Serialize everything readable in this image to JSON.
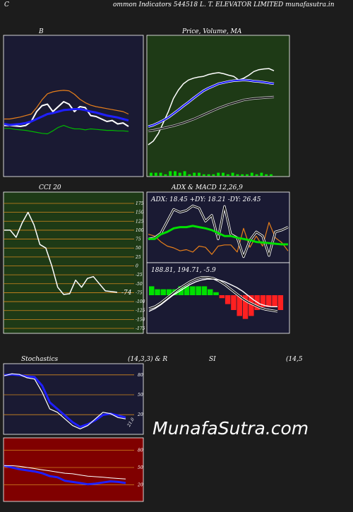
{
  "header": {
    "left": "C",
    "title": "ommon  Indicators 544518  L. T. ELEVATOR LIMITED munafasutra.in"
  },
  "watermark": "MunafaSutra.com",
  "colors": {
    "background": "#1c1c1c",
    "navy_panel": "#1a1a33",
    "green_panel": "#1e3a16",
    "red_panel": "#800000",
    "grid_orange": "#d2871e",
    "white": "#ffffff",
    "blue": "#1f1fff",
    "green": "#00b800",
    "orange": "#e67e1a",
    "bright_green": "#00e000",
    "red": "#ff2020"
  },
  "chart_data": [
    {
      "id": "bollinger",
      "type": "line",
      "title": "B",
      "series": [
        {
          "values": [
            168,
            168,
            169,
            170,
            168,
            160,
            140,
            128,
            125,
            140,
            130,
            120,
            125,
            140,
            130,
            132,
            148,
            150,
            155,
            160,
            158,
            165,
            163,
            170
          ]
        },
        {
          "values": [
            165,
            167,
            166,
            165,
            163,
            160,
            155,
            150,
            145,
            143,
            140,
            137,
            136,
            135,
            135,
            137,
            140,
            142,
            145,
            148,
            150,
            152,
            155,
            158
          ]
        },
        {
          "values": [
            155,
            155,
            153,
            151,
            148,
            145,
            132,
            116,
            104,
            100,
            98,
            97,
            98,
            105,
            115,
            122,
            127,
            130,
            132,
            134,
            136,
            138,
            140,
            145
          ]
        },
        {
          "values": [
            174,
            174,
            176,
            177,
            178,
            180,
            182,
            184,
            185,
            179,
            172,
            168,
            172,
            175,
            175,
            177,
            175,
            176,
            177,
            178,
            178,
            179,
            179,
            180
          ]
        }
      ]
    },
    {
      "id": "price_ma",
      "type": "line",
      "title": "Price,  Volume,  MA",
      "series": [
        {
          "values": [
            210,
            200,
            180,
            150,
            120,
            85,
            62,
            45,
            35,
            30,
            27,
            25,
            20,
            17,
            15,
            18,
            22,
            25,
            35,
            30,
            22,
            12,
            7,
            5,
            4,
            10
          ]
        },
        {
          "values": [
            180,
            176,
            170,
            163,
            155,
            145,
            135,
            124,
            114,
            103,
            93,
            83,
            76,
            70,
            64,
            61,
            58,
            56,
            55,
            54,
            55,
            57,
            58,
            60,
            62,
            64
          ]
        },
        {
          "values": [
            192,
            190,
            187,
            184,
            181,
            178,
            174,
            170,
            165,
            160,
            154,
            148,
            142,
            136,
            130,
            125,
            120,
            116,
            112,
            108,
            106,
            104,
            103,
            102,
            101,
            100
          ]
        }
      ],
      "volume": [
        2,
        2,
        2,
        1,
        3,
        3,
        2,
        3,
        1,
        2,
        2,
        1,
        1,
        1,
        2,
        2,
        1,
        2,
        1,
        1,
        1,
        2,
        1,
        2,
        1,
        1
      ]
    },
    {
      "id": "cci",
      "type": "line",
      "title": "CCI 20",
      "yticks": [
        175,
        150,
        125,
        100,
        75,
        50,
        25,
        0,
        -25,
        -50,
        -75,
        -100,
        -125,
        -150,
        -175
      ],
      "ylim": [
        -175,
        175
      ],
      "last_label": "-74",
      "series": [
        {
          "values": [
            100,
            100,
            80,
            120,
            150,
            115,
            60,
            50,
            0,
            -60,
            -80,
            -78,
            -40,
            -60,
            -35,
            -30,
            -50,
            -70,
            -72,
            -74
          ]
        }
      ]
    },
    {
      "id": "adx",
      "type": "line",
      "title": "ADX  & MACD 12,26,9",
      "readout": "ADX: 18.45 +DY: 18.21 -DY: 26.45",
      "series": [
        {
          "values": [
            40,
            40,
            48,
            52,
            58,
            60,
            60,
            62,
            60,
            58,
            55,
            50,
            45,
            45,
            42,
            40,
            38,
            35,
            34,
            33,
            32,
            31,
            31
          ]
        },
        {
          "values": [
            40,
            42,
            50,
            70,
            90,
            85,
            88,
            96,
            92,
            70,
            80,
            40,
            95,
            48,
            42,
            10,
            38,
            52,
            45,
            12,
            52,
            55,
            60
          ]
        },
        {
          "values": [
            48,
            45,
            35,
            28,
            25,
            20,
            22,
            18,
            28,
            26,
            14,
            28,
            30,
            30,
            18,
            58,
            26,
            45,
            28,
            68,
            42,
            34,
            20
          ]
        }
      ]
    },
    {
      "id": "macd",
      "type": "line",
      "readout": "188.81,  194.71,  -5.9",
      "series": [
        {
          "values": [
            -15,
            -12,
            -8,
            -3,
            2,
            6,
            10,
            14,
            17,
            19,
            20,
            20,
            19,
            17,
            14,
            11,
            7,
            2,
            -3,
            -7,
            -9,
            -10,
            -10
          ]
        },
        {
          "values": [
            -12,
            -10,
            -6,
            -1,
            4,
            9,
            13,
            17,
            20,
            22,
            22,
            21,
            18,
            14,
            9,
            4,
            -1,
            -5,
            -8,
            -11,
            -13,
            -14,
            -15
          ]
        }
      ],
      "histogram": [
        3,
        2,
        2,
        2,
        2,
        3,
        3,
        3,
        3,
        3,
        2,
        1,
        -1,
        -3,
        -5,
        -7,
        -8,
        -7,
        -5,
        -4,
        -4,
        -4,
        -5
      ]
    },
    {
      "id": "stochastics",
      "type": "line",
      "title": "Stochastics",
      "params": "(14,3,3) & R",
      "yticks": [
        80,
        50,
        20
      ],
      "ylim": [
        0,
        100
      ],
      "last_label": "21.0",
      "series": [
        {
          "values": [
            85,
            88,
            87,
            82,
            80,
            60,
            35,
            30,
            20,
            10,
            5,
            10,
            20,
            30,
            28,
            22,
            20
          ]
        },
        {
          "values": [
            86,
            87,
            86,
            84,
            83,
            70,
            45,
            35,
            25,
            15,
            8,
            12,
            18,
            26,
            28,
            25,
            22
          ]
        }
      ]
    },
    {
      "id": "rsi",
      "type": "line",
      "title": "SI",
      "params": "(14,5",
      "yticks": [
        80,
        50,
        20
      ],
      "ylim": [
        0,
        100
      ],
      "series": [
        {
          "values": [
            58,
            55,
            52,
            50,
            48,
            45,
            40,
            38,
            32,
            30,
            28,
            26,
            27,
            29,
            31,
            30,
            28
          ]
        },
        {
          "values": [
            58,
            58,
            57,
            55,
            53,
            51,
            49,
            47,
            45,
            44,
            42,
            40,
            39,
            38,
            37,
            36,
            35
          ]
        }
      ]
    }
  ]
}
